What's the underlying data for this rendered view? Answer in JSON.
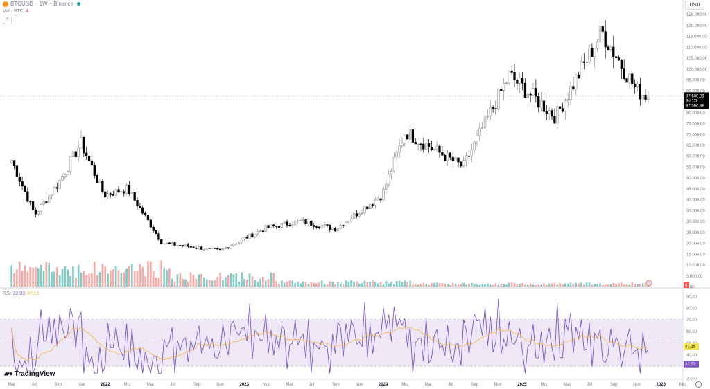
{
  "header": {
    "symbol": "BTCUSD",
    "separator1": "·",
    "interval": "1W",
    "separator2": "·",
    "exchange": "Binance",
    "volume_label": "Vol · BTC",
    "volume_value": "4",
    "currency": "USD"
  },
  "rsi": {
    "label": "RSI",
    "value": "32,03",
    "ma_value": "47,15"
  },
  "brand": {
    "name": "TradingView"
  },
  "colors": {
    "up": "#b2b5be",
    "down": "#000000",
    "vol_up": "#80cbc4",
    "vol_down": "#f7a9a7",
    "rsi_line": "#7e57c2",
    "rsi_ma": "#f2b84b",
    "rsi_band": "#ede7f6",
    "price_tag_bg": "#000000"
  },
  "icons": [
    "bitcoin-icon",
    "live-dot-icon",
    "collapse-icon",
    "settings-icon",
    "flag-icon",
    "tradingview-logo-icon"
  ],
  "chart_data": {
    "type": "candlestick",
    "title": "BTCUSD · 1W · Binance",
    "ylim": [
      0,
      130000
    ],
    "y_ticks": [
      "125.000,00",
      "120.000,00",
      "115.000,00",
      "110.000,00",
      "105.000,00",
      "100.000,00",
      "95.000,00",
      "90.000,00",
      "85.000,00",
      "80.000,00",
      "75.000,00",
      "70.000,00",
      "65.000,00",
      "60.000,00",
      "55.000,00",
      "50.000,00",
      "45.000,00",
      "40.000,00",
      "35.000,00",
      "30.000,00",
      "25.000,00",
      "20.000,00",
      "15.000,00",
      "10.000,00",
      "5.000,00",
      "0,00"
    ],
    "x_ticks": [
      "Mai",
      "Jul",
      "Sep",
      "Nov",
      "2022",
      "Mrz",
      "Mai",
      "Jul",
      "Sep",
      "Nov",
      "2023",
      "Mrz",
      "Mai",
      "Jul",
      "Sep",
      "Nov",
      "2024",
      "Mrz",
      "Mai",
      "Jul",
      "Sep",
      "Nov",
      "2025",
      "Mrz",
      "Mai",
      "Jul",
      "Sep",
      "Nov",
      "2026",
      "Mrz"
    ],
    "price_label": {
      "price": "87.600,09",
      "countdown": "3d 12h",
      "second": "87.590,88"
    },
    "last_volume_label": "4",
    "ohlc_weekly_key_points": [
      {
        "x": "2021-05",
        "y": 58000
      },
      {
        "x": "2021-07",
        "y": 33000
      },
      {
        "x": "2021-09",
        "y": 47000
      },
      {
        "x": "2021-11",
        "y": 66000
      },
      {
        "x": "2022-01",
        "y": 42000
      },
      {
        "x": "2022-03",
        "y": 45000
      },
      {
        "x": "2022-06",
        "y": 20000
      },
      {
        "x": "2022-11",
        "y": 16500
      },
      {
        "x": "2023-03",
        "y": 27000
      },
      {
        "x": "2023-06",
        "y": 30000
      },
      {
        "x": "2023-09",
        "y": 26500
      },
      {
        "x": "2024-01",
        "y": 42000
      },
      {
        "x": "2024-03",
        "y": 71000
      },
      {
        "x": "2024-08",
        "y": 55000
      },
      {
        "x": "2024-12",
        "y": 97000
      },
      {
        "x": "2025-04",
        "y": 78000
      },
      {
        "x": "2025-08",
        "y": 117000
      },
      {
        "x": "2025-11",
        "y": 90000
      },
      {
        "x": "2025-12",
        "y": 87600
      }
    ],
    "rsi_panel": {
      "ylim": [
        20,
        90
      ],
      "y_ticks": [
        "90,00",
        "80,00",
        "70,00",
        "60,00",
        "50,00",
        "40,00",
        "30,00",
        "20,00"
      ],
      "bands": [
        30,
        70
      ],
      "mid_line": 50
    }
  }
}
